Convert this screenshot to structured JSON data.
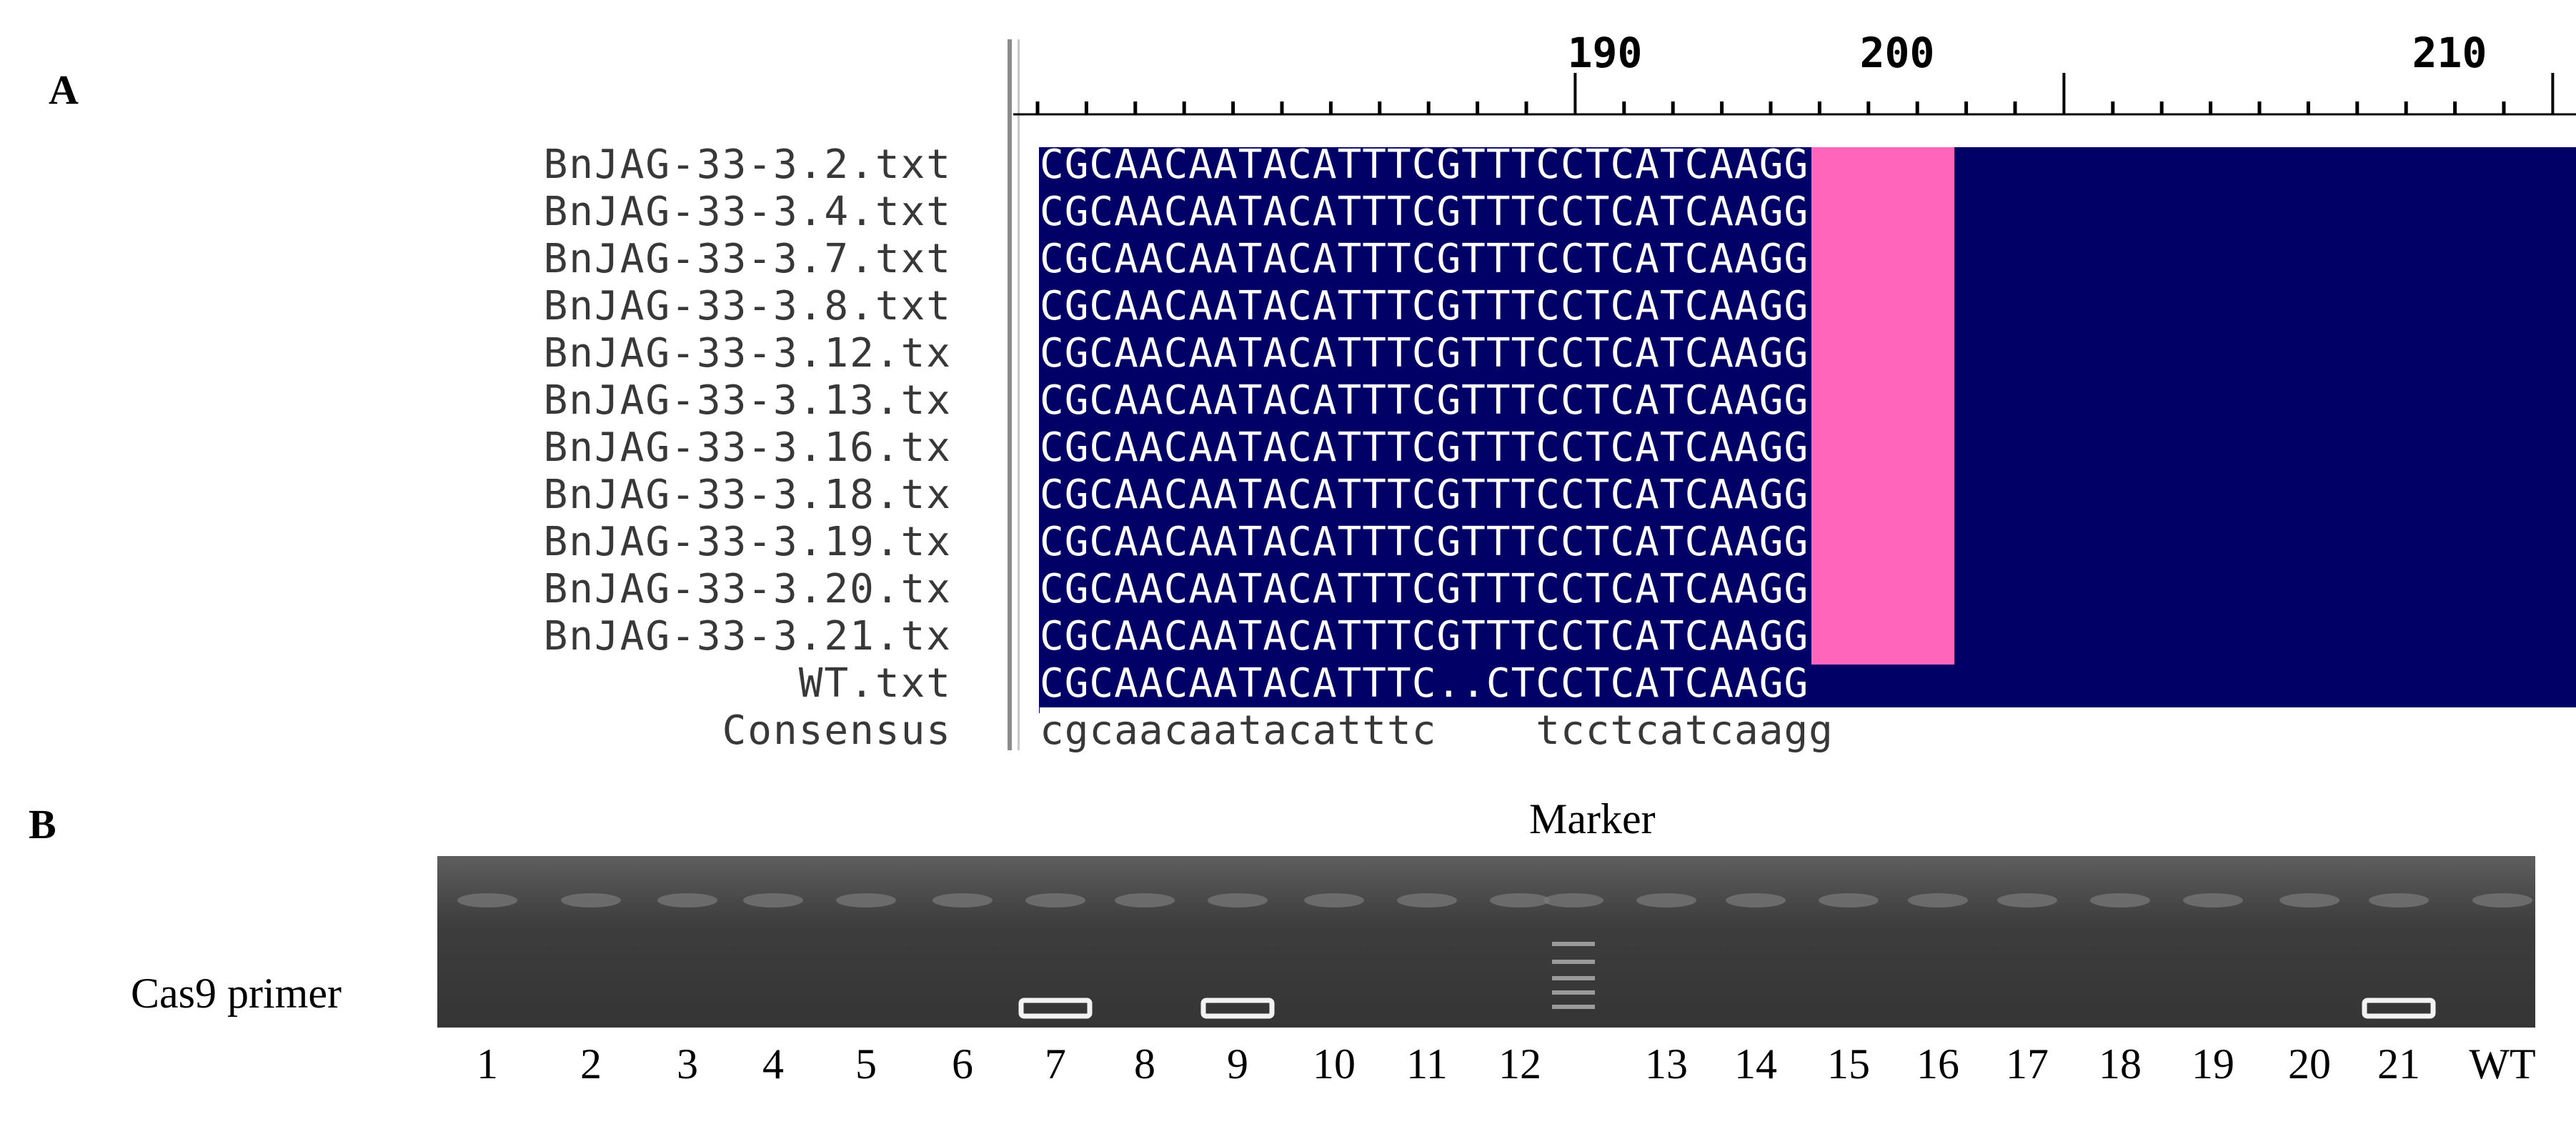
{
  "panels": {
    "a_label": "A",
    "b_label": "B"
  },
  "ruler": {
    "ticks": [
      "190",
      "200",
      "210"
    ]
  },
  "alignment": {
    "rows": [
      {
        "name": "BnJAG-33-3.2.txt",
        "seq": "CGCAACAATACATTTCGTTTCCTCATCAAGG"
      },
      {
        "name": "BnJAG-33-3.4.txt",
        "seq": "CGCAACAATACATTTCGTTTCCTCATCAAGG"
      },
      {
        "name": "BnJAG-33-3.7.txt",
        "seq": "CGCAACAATACATTTCGTTTCCTCATCAAGG"
      },
      {
        "name": "BnJAG-33-3.8.txt",
        "seq": "CGCAACAATACATTTCGTTTCCTCATCAAGG"
      },
      {
        "name": "BnJAG-33-3.12.tx",
        "seq": "CGCAACAATACATTTCGTTTCCTCATCAAGG"
      },
      {
        "name": "BnJAG-33-3.13.tx",
        "seq": "CGCAACAATACATTTCGTTTCCTCATCAAGG"
      },
      {
        "name": "BnJAG-33-3.16.tx",
        "seq": "CGCAACAATACATTTCGTTTCCTCATCAAGG"
      },
      {
        "name": "BnJAG-33-3.18.tx",
        "seq": "CGCAACAATACATTTCGTTTCCTCATCAAGG"
      },
      {
        "name": "BnJAG-33-3.19.tx",
        "seq": "CGCAACAATACATTTCGTTTCCTCATCAAGG"
      },
      {
        "name": "BnJAG-33-3.20.tx",
        "seq": "CGCAACAATACATTTCGTTTCCTCATCAAGG"
      },
      {
        "name": "BnJAG-33-3.21.tx",
        "seq": "CGCAACAATACATTTCGTTTCCTCATCAAGG"
      },
      {
        "name": "WT.txt",
        "seq": "CGCAACAATACATTTC..CTCCTCATCAAGG"
      }
    ],
    "consensus_name": "Consensus",
    "consensus_seq": "cgcaacaatacatttc    tcctcatcaagg"
  },
  "gel": {
    "marker_label": "Marker",
    "primer_label": "Cas9 primer",
    "lanes": [
      "1",
      "2",
      "3",
      "4",
      "5",
      "6",
      "7",
      "8",
      "9",
      "10",
      "11",
      "12",
      "13",
      "14",
      "15",
      "16",
      "17",
      "18",
      "19",
      "20",
      "21",
      "WT"
    ],
    "positive_lanes": [
      "7",
      "9",
      "21"
    ]
  },
  "colors": {
    "alignment_bg": "#000066",
    "insertion_highlight": "#ff66bb"
  }
}
